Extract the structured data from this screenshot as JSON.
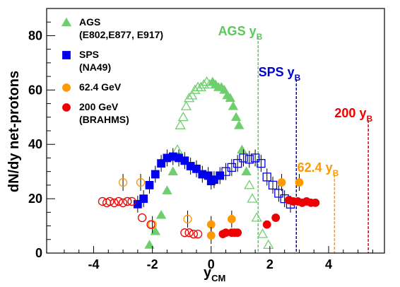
{
  "chart_data": {
    "type": "scatter",
    "xlabel": "y",
    "xlabel_sub": "CM",
    "ylabel": "dN/dy net-protons",
    "xlim": [
      -5.6,
      5.9
    ],
    "ylim": [
      0,
      90
    ],
    "x_ticks": [
      -4,
      -2,
      0,
      2,
      4
    ],
    "y_ticks": [
      0,
      20,
      40,
      60,
      80
    ],
    "grid": false,
    "legend_position": "top-left",
    "legend": [
      {
        "lines": [
          "AGS",
          "(E802,E877, E917)"
        ],
        "marker": "triangle",
        "color": "#6fcf6f"
      },
      {
        "lines": [
          "SPS",
          "(NA49)"
        ],
        "marker": "square",
        "color": "#0000ee"
      },
      {
        "lines": [
          "62.4 GeV"
        ],
        "marker": "circle",
        "color": "#ff9900"
      },
      {
        "lines": [
          "200 GeV",
          "(BRAHMS)"
        ],
        "marker": "circle",
        "color": "#ee0000"
      }
    ],
    "reference_lines": [
      {
        "label": "AGS",
        "sub": "B",
        "x": 1.6,
        "color": "#5ac85a"
      },
      {
        "label": "SPS",
        "sub": "B",
        "x": 2.9,
        "color": "#0000cc"
      },
      {
        "label": "62.4",
        "sub": "B",
        "x": 4.2,
        "color": "#ff9900"
      },
      {
        "label": "200",
        "sub": "B",
        "x": 5.35,
        "color": "#ee0000"
      }
    ],
    "series": [
      {
        "name": "AGS",
        "marker": "triangle",
        "color": "#6fcf6f",
        "points": [
          {
            "x": -2.1,
            "y": 3,
            "filled": true
          },
          {
            "x": -1.9,
            "y": 8,
            "filled": true
          },
          {
            "x": -1.7,
            "y": 14,
            "filled": true
          },
          {
            "x": -1.5,
            "y": 23,
            "filled": true
          },
          {
            "x": -1.3,
            "y": 30,
            "filled": true
          },
          {
            "x": -1.15,
            "y": 38,
            "filled": false
          },
          {
            "x": -1.05,
            "y": 47,
            "filled": false
          },
          {
            "x": -0.95,
            "y": 50,
            "filled": false
          },
          {
            "x": -0.85,
            "y": 54,
            "filled": false
          },
          {
            "x": -0.75,
            "y": 57,
            "filled": false
          },
          {
            "x": -0.65,
            "y": 58,
            "filled": false
          },
          {
            "x": -0.55,
            "y": 60,
            "filled": false
          },
          {
            "x": -0.45,
            "y": 61,
            "filled": false
          },
          {
            "x": -0.35,
            "y": 61,
            "filled": false
          },
          {
            "x": -0.25,
            "y": 62,
            "filled": false
          },
          {
            "x": -0.15,
            "y": 63,
            "filled": false
          },
          {
            "x": -0.05,
            "y": 62,
            "filled": false
          },
          {
            "x": 0.05,
            "y": 63,
            "filled": true
          },
          {
            "x": 0.15,
            "y": 62,
            "filled": true
          },
          {
            "x": 0.25,
            "y": 61,
            "filled": true
          },
          {
            "x": 0.35,
            "y": 61,
            "filled": true
          },
          {
            "x": 0.45,
            "y": 60,
            "filled": true
          },
          {
            "x": 0.55,
            "y": 58,
            "filled": true
          },
          {
            "x": 0.65,
            "y": 57,
            "filled": true
          },
          {
            "x": 0.75,
            "y": 54,
            "filled": true
          },
          {
            "x": 0.85,
            "y": 50,
            "filled": true
          },
          {
            "x": 0.95,
            "y": 47,
            "filled": true
          },
          {
            "x": 1.05,
            "y": 38,
            "filled": true
          },
          {
            "x": 1.2,
            "y": 30,
            "filled": true
          },
          {
            "x": 1.3,
            "y": 25,
            "filled": false
          },
          {
            "x": 1.4,
            "y": 20,
            "filled": false
          },
          {
            "x": 1.55,
            "y": 13,
            "filled": false
          },
          {
            "x": 1.75,
            "y": 7,
            "filled": false
          },
          {
            "x": 1.95,
            "y": 3,
            "filled": false
          }
        ]
      },
      {
        "name": "SPS",
        "marker": "square",
        "color": "#0000ee",
        "points": [
          {
            "x": -2.5,
            "y": 18,
            "filled": true
          },
          {
            "x": -2.3,
            "y": 20,
            "filled": true
          },
          {
            "x": -2.1,
            "y": 25,
            "filled": true
          },
          {
            "x": -1.9,
            "y": 29,
            "filled": true
          },
          {
            "x": -1.7,
            "y": 33,
            "filled": true
          },
          {
            "x": -1.5,
            "y": 35,
            "filled": true
          },
          {
            "x": -1.3,
            "y": 35.5,
            "filled": true
          },
          {
            "x": -1.1,
            "y": 35,
            "filled": true
          },
          {
            "x": -0.9,
            "y": 34,
            "filled": true
          },
          {
            "x": -0.7,
            "y": 32,
            "filled": true
          },
          {
            "x": -0.5,
            "y": 31,
            "filled": true
          },
          {
            "x": -0.3,
            "y": 29,
            "filled": true
          },
          {
            "x": -0.1,
            "y": 28.5,
            "filled": true
          },
          {
            "x": 0.0,
            "y": 26.5,
            "filled": true
          },
          {
            "x": 0.1,
            "y": 27,
            "filled": true
          },
          {
            "x": 0.3,
            "y": 28.5,
            "filled": true
          },
          {
            "x": 0.5,
            "y": 30,
            "filled": false
          },
          {
            "x": 0.7,
            "y": 31.5,
            "filled": false
          },
          {
            "x": 0.9,
            "y": 33,
            "filled": false
          },
          {
            "x": 1.1,
            "y": 35,
            "filled": false
          },
          {
            "x": 1.3,
            "y": 34.5,
            "filled": false
          },
          {
            "x": 1.5,
            "y": 35,
            "filled": false
          },
          {
            "x": 1.7,
            "y": 33,
            "filled": false
          },
          {
            "x": 1.9,
            "y": 28,
            "filled": false
          },
          {
            "x": 2.1,
            "y": 25,
            "filled": false
          },
          {
            "x": 2.3,
            "y": 22,
            "filled": false
          },
          {
            "x": 2.5,
            "y": 20,
            "filled": false
          },
          {
            "x": 2.7,
            "y": 18,
            "filled": false
          }
        ]
      },
      {
        "name": "62.4 GeV",
        "marker": "circle",
        "color": "#ff9900",
        "points": [
          {
            "x": -3.0,
            "y": 26,
            "filled": false
          },
          {
            "x": -2.4,
            "y": 26,
            "filled": false
          },
          {
            "x": -2.0,
            "y": 10.5,
            "filled": false
          },
          {
            "x": -0.8,
            "y": 12.5,
            "filled": false
          },
          {
            "x": 0.0,
            "y": 10.5,
            "filled": true
          },
          {
            "x": 0.0,
            "y": 6.5,
            "filled": true
          },
          {
            "x": 0.7,
            "y": 12.5,
            "filled": true
          },
          {
            "x": 2.4,
            "y": 26,
            "filled": true
          },
          {
            "x": 3.0,
            "y": 26,
            "filled": true
          }
        ]
      },
      {
        "name": "200 GeV",
        "marker": "circle",
        "color": "#ee0000",
        "points": [
          {
            "x": -3.7,
            "y": 19,
            "filled": false
          },
          {
            "x": -3.55,
            "y": 18.5,
            "filled": false
          },
          {
            "x": -3.45,
            "y": 19,
            "filled": false
          },
          {
            "x": -3.3,
            "y": 18.5,
            "filled": false
          },
          {
            "x": -3.15,
            "y": 19,
            "filled": false
          },
          {
            "x": -3.0,
            "y": 18.5,
            "filled": false
          },
          {
            "x": -2.85,
            "y": 19,
            "filled": false
          },
          {
            "x": -2.7,
            "y": 19,
            "filled": false
          },
          {
            "x": -2.35,
            "y": 13,
            "filled": false
          },
          {
            "x": -2.05,
            "y": 10.5,
            "filled": false
          },
          {
            "x": -0.9,
            "y": 7.5,
            "filled": false
          },
          {
            "x": -0.75,
            "y": 7.5,
            "filled": false
          },
          {
            "x": -0.6,
            "y": 7,
            "filled": false
          },
          {
            "x": -0.45,
            "y": 7,
            "filled": false
          },
          {
            "x": 0.4,
            "y": 7,
            "filled": true
          },
          {
            "x": 0.5,
            "y": 7.5,
            "filled": true
          },
          {
            "x": 0.7,
            "y": 7.5,
            "filled": true
          },
          {
            "x": 0.8,
            "y": 7.5,
            "filled": true
          },
          {
            "x": 0.9,
            "y": 7.5,
            "filled": true
          },
          {
            "x": 1.9,
            "y": 10.5,
            "filled": true
          },
          {
            "x": 2.2,
            "y": 13,
            "filled": true
          },
          {
            "x": 2.65,
            "y": 19.5,
            "filled": true
          },
          {
            "x": 2.8,
            "y": 19,
            "filled": true
          },
          {
            "x": 2.95,
            "y": 19,
            "filled": true
          },
          {
            "x": 3.1,
            "y": 18.5,
            "filled": true
          },
          {
            "x": 3.25,
            "y": 19,
            "filled": true
          },
          {
            "x": 3.4,
            "y": 18.5,
            "filled": true
          },
          {
            "x": 3.55,
            "y": 18.5,
            "filled": true
          }
        ]
      }
    ]
  }
}
